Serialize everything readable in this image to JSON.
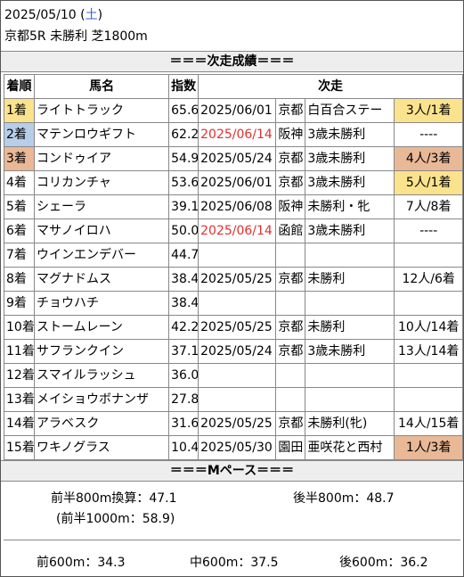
{
  "header": {
    "date": "2025/05/10",
    "day_of_week": "土",
    "race": "京都5R 未勝利 芝1800m"
  },
  "section_next": {
    "title": "＝＝＝次走成績＝＝＝"
  },
  "table": {
    "columns": [
      "着順",
      "馬名",
      "指数",
      "次走"
    ],
    "rows": [
      {
        "rank": "1着",
        "name": "ライトトラック",
        "index": "65.6",
        "next_date": "2025/06/01",
        "next_date_red": false,
        "course": "京都",
        "race": "白百合ステー",
        "result": "3人/1着",
        "rank_bg": "#fbe38e",
        "result_bg": "#fbe38e"
      },
      {
        "rank": "2着",
        "name": "マテンロウギフト",
        "index": "62.2",
        "next_date": "2025/06/14",
        "next_date_red": true,
        "course": "阪神",
        "race": "3歳未勝利",
        "result": "----",
        "rank_bg": "#b7cde8",
        "result_bg": ""
      },
      {
        "rank": "3着",
        "name": "コンドゥイア",
        "index": "54.9",
        "next_date": "2025/05/24",
        "next_date_red": false,
        "course": "京都",
        "race": "3歳未勝利",
        "result": "4人/3着",
        "rank_bg": "#e9b896",
        "result_bg": "#e9b896"
      },
      {
        "rank": "4着",
        "name": "コリカンチャ",
        "index": "53.6",
        "next_date": "2025/06/01",
        "next_date_red": false,
        "course": "京都",
        "race": "3歳未勝利",
        "result": "5人/1着",
        "rank_bg": "",
        "result_bg": "#fbe38e"
      },
      {
        "rank": "5着",
        "name": "シェーラ",
        "index": "39.1",
        "next_date": "2025/06/08",
        "next_date_red": false,
        "course": "阪神",
        "race": "未勝利・牝",
        "result": "7人/8着",
        "rank_bg": "",
        "result_bg": ""
      },
      {
        "rank": "6着",
        "name": "マサノイロハ",
        "index": "50.0",
        "next_date": "2025/06/14",
        "next_date_red": true,
        "course": "函館",
        "race": "3歳未勝利",
        "result": "----",
        "rank_bg": "",
        "result_bg": ""
      },
      {
        "rank": "7着",
        "name": "ウインエンデバー",
        "index": "44.7",
        "next_date": "",
        "next_date_red": false,
        "course": "",
        "race": "",
        "result": "",
        "rank_bg": "",
        "result_bg": ""
      },
      {
        "rank": "8着",
        "name": "マグナドムス",
        "index": "38.4",
        "next_date": "2025/05/25",
        "next_date_red": false,
        "course": "京都",
        "race": "未勝利",
        "result": "12人/6着",
        "rank_bg": "",
        "result_bg": ""
      },
      {
        "rank": "9着",
        "name": "チョウハチ",
        "index": "38.4",
        "next_date": "",
        "next_date_red": false,
        "course": "",
        "race": "",
        "result": "",
        "rank_bg": "",
        "result_bg": ""
      },
      {
        "rank": "10着",
        "name": "ストームレーン",
        "index": "42.2",
        "next_date": "2025/05/25",
        "next_date_red": false,
        "course": "京都",
        "race": "未勝利",
        "result": "10人/14着",
        "rank_bg": "",
        "result_bg": ""
      },
      {
        "rank": "11着",
        "name": "サフランクイン",
        "index": "37.1",
        "next_date": "2025/05/24",
        "next_date_red": false,
        "course": "京都",
        "race": "3歳未勝利",
        "result": "13人/14着",
        "rank_bg": "",
        "result_bg": ""
      },
      {
        "rank": "12着",
        "name": "スマイルラッシュ",
        "index": "36.0",
        "next_date": "",
        "next_date_red": false,
        "course": "",
        "race": "",
        "result": "",
        "rank_bg": "",
        "result_bg": ""
      },
      {
        "rank": "13着",
        "name": "メイショウボナンザ",
        "index": "27.8",
        "next_date": "",
        "next_date_red": false,
        "course": "",
        "race": "",
        "result": "",
        "rank_bg": "",
        "result_bg": ""
      },
      {
        "rank": "14着",
        "name": "アラベスク",
        "index": "31.6",
        "next_date": "2025/05/25",
        "next_date_red": false,
        "course": "京都",
        "race": "未勝利(牝)",
        "result": "14人/15着",
        "rank_bg": "",
        "result_bg": ""
      },
      {
        "rank": "15着",
        "name": "ワキノグラス",
        "index": "10.4",
        "next_date": "2025/05/30",
        "next_date_red": false,
        "course": "園田",
        "race": "亜咲花と西村",
        "result": "1人/3着",
        "rank_bg": "",
        "result_bg": "#e9b896"
      }
    ]
  },
  "section_pace": {
    "title": "＝＝＝Mペース＝＝＝"
  },
  "pace": {
    "first800": "前半800m換算：47.1",
    "last800": "後半800m：48.7",
    "first1000": "(前半1000m：58.9)",
    "first600": "前600m：34.3",
    "mid600": "中600m：37.5",
    "last600": "後600m：36.2"
  }
}
